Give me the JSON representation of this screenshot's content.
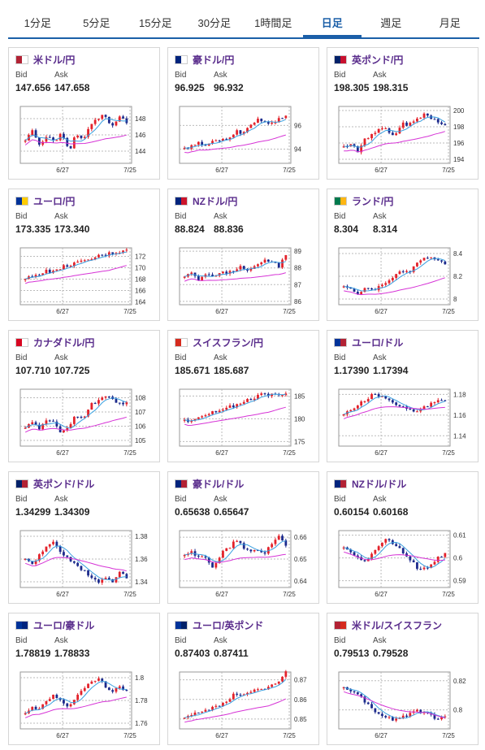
{
  "tabs": [
    {
      "label": "1分足",
      "active": false
    },
    {
      "label": "5分足",
      "active": false
    },
    {
      "label": "15分足",
      "active": false
    },
    {
      "label": "30分足",
      "active": false
    },
    {
      "label": "1時間足",
      "active": false
    },
    {
      "label": "日足",
      "active": true
    },
    {
      "label": "週足",
      "active": false
    },
    {
      "label": "月足",
      "active": false
    }
  ],
  "labels": {
    "bid": "Bid",
    "ask": "Ask"
  },
  "colors": {
    "accent": "#1b5fa8",
    "up": "#e3222b",
    "down": "#1c2a8c",
    "ma_short": "#3aa0e0",
    "ma_long": "#d633d6",
    "pair_name": "#5a2d8c"
  },
  "cards": [
    {
      "name": "米ドル/円",
      "flag": [
        "#b22234",
        "#ffffff"
      ],
      "bid": "147.656",
      "ask": "147.658",
      "chart_data": {
        "type": "candlestick",
        "x_ticks": [
          "6/27",
          "7/25"
        ],
        "y_ticks": [
          "148",
          "146",
          "144"
        ],
        "ylim": [
          142.5,
          149.5
        ],
        "trend": [
          145.5,
          146.5,
          144.5,
          146,
          145,
          146.5,
          144,
          146,
          145.5,
          147,
          148,
          148.5,
          147,
          148.2,
          147.6
        ]
      }
    },
    {
      "name": "豪ドル/円",
      "flag": [
        "#00247d",
        "#ffffff"
      ],
      "bid": "96.925",
      "ask": "96.932",
      "chart_data": {
        "type": "candlestick",
        "x_ticks": [
          "6/27",
          "7/25"
        ],
        "y_ticks": [
          "96",
          "94"
        ],
        "ylim": [
          92.8,
          97.6
        ],
        "trend": [
          94,
          94.2,
          94.5,
          94.4,
          94.6,
          94.8,
          94.7,
          95.5,
          95.3,
          96,
          96.5,
          96.3,
          96.1,
          96.6,
          96.9
        ]
      }
    },
    {
      "name": "英ポンド/円",
      "flag": [
        "#012169",
        "#c8102e"
      ],
      "bid": "198.305",
      "ask": "198.315",
      "chart_data": {
        "type": "candlestick",
        "x_ticks": [
          "6/27",
          "7/25"
        ],
        "y_ticks": [
          "200",
          "198",
          "196",
          "194"
        ],
        "ylim": [
          193.5,
          200.5
        ],
        "trend": [
          195.5,
          196,
          195,
          196.5,
          197,
          198,
          197.5,
          196.8,
          198.5,
          198.2,
          199,
          199.5,
          199.2,
          198.6,
          198.3
        ]
      }
    },
    {
      "name": "ユーロ/円",
      "flag": [
        "#003399",
        "#ffcc00"
      ],
      "bid": "173.335",
      "ask": "173.340",
      "chart_data": {
        "type": "candlestick",
        "x_ticks": [
          "6/27",
          "7/25"
        ],
        "y_ticks": [
          "172",
          "170",
          "168",
          "166",
          "164"
        ],
        "ylim": [
          163.5,
          173.5
        ],
        "trend": [
          168,
          168.5,
          169,
          169.5,
          169.2,
          170,
          170.5,
          170.8,
          171,
          171.5,
          172,
          172.3,
          172.6,
          172.8,
          173.3
        ]
      }
    },
    {
      "name": "NZドル/円",
      "flag": [
        "#00247d",
        "#cc142b"
      ],
      "bid": "88.824",
      "ask": "88.836",
      "chart_data": {
        "type": "candlestick",
        "x_ticks": [
          "6/27",
          "7/25"
        ],
        "y_ticks": [
          "89",
          "88",
          "87",
          "86"
        ],
        "ylim": [
          85.8,
          89.2
        ],
        "trend": [
          87.5,
          87.7,
          87.3,
          87.6,
          87.4,
          87.8,
          87.7,
          87.9,
          88.1,
          87.8,
          88.2,
          88.5,
          88.4,
          88.1,
          88.8
        ]
      }
    },
    {
      "name": "ランド/円",
      "flag": [
        "#007a4d",
        "#ffb612"
      ],
      "bid": "8.304",
      "ask": "8.314",
      "chart_data": {
        "type": "candlestick",
        "x_ticks": [
          "6/27",
          "7/25"
        ],
        "y_ticks": [
          "8.4",
          "8.2",
          "8"
        ],
        "ylim": [
          7.95,
          8.45
        ],
        "trend": [
          8.12,
          8.08,
          8.05,
          8.1,
          8.07,
          8.13,
          8.15,
          8.2,
          8.25,
          8.23,
          8.3,
          8.35,
          8.37,
          8.33,
          8.31
        ]
      }
    },
    {
      "name": "カナダドル/円",
      "flag": [
        "#d80621",
        "#ffffff"
      ],
      "bid": "107.710",
      "ask": "107.725",
      "chart_data": {
        "type": "candlestick",
        "x_ticks": [
          "6/27",
          "7/25"
        ],
        "y_ticks": [
          "108",
          "107",
          "106",
          "105"
        ],
        "ylim": [
          104.6,
          108.6
        ],
        "trend": [
          106,
          106.4,
          105.8,
          106.5,
          106.2,
          105.5,
          106,
          106.8,
          106.5,
          107.5,
          107.8,
          108.2,
          107.9,
          107.6,
          107.7
        ]
      }
    },
    {
      "name": "スイスフラン/円",
      "flag": [
        "#d52b1e",
        "#ffffff"
      ],
      "bid": "185.671",
      "ask": "185.687",
      "chart_data": {
        "type": "candlestick",
        "x_ticks": [
          "6/27",
          "7/25"
        ],
        "y_ticks": [
          "185",
          "180",
          "175"
        ],
        "ylim": [
          174,
          186.5
        ],
        "trend": [
          179.5,
          179.8,
          180.5,
          181,
          181.5,
          182,
          182.5,
          183,
          183.5,
          184.2,
          184.8,
          185.5,
          185.3,
          185.2,
          185.6
        ]
      }
    },
    {
      "name": "ユーロ/ドル",
      "flag": [
        "#003399",
        "#b22234"
      ],
      "bid": "1.17390",
      "ask": "1.17394",
      "chart_data": {
        "type": "candlestick",
        "x_ticks": [
          "6/27",
          "7/25"
        ],
        "y_ticks": [
          "1.18",
          "1.16",
          "1.14"
        ],
        "ylim": [
          1.13,
          1.185
        ],
        "trend": [
          1.16,
          1.165,
          1.17,
          1.175,
          1.18,
          1.178,
          1.175,
          1.172,
          1.168,
          1.165,
          1.163,
          1.167,
          1.17,
          1.175,
          1.174
        ]
      }
    },
    {
      "name": "英ポンド/ドル",
      "flag": [
        "#012169",
        "#b22234"
      ],
      "bid": "1.34299",
      "ask": "1.34309",
      "chart_data": {
        "type": "candlestick",
        "x_ticks": [
          "6/27",
          "7/25"
        ],
        "y_ticks": [
          "1.38",
          "1.36",
          "1.34"
        ],
        "ylim": [
          1.335,
          1.385
        ],
        "trend": [
          1.36,
          1.355,
          1.365,
          1.37,
          1.375,
          1.365,
          1.36,
          1.355,
          1.35,
          1.345,
          1.34,
          1.345,
          1.34,
          1.35,
          1.343
        ]
      }
    },
    {
      "name": "豪ドル/ドル",
      "flag": [
        "#00247d",
        "#b22234"
      ],
      "bid": "0.65638",
      "ask": "0.65647",
      "chart_data": {
        "type": "candlestick",
        "x_ticks": [
          "6/27",
          "7/25"
        ],
        "y_ticks": [
          "0.66",
          "0.65",
          "0.64"
        ],
        "ylim": [
          0.637,
          0.663
        ],
        "trend": [
          0.652,
          0.653,
          0.651,
          0.65,
          0.645,
          0.652,
          0.655,
          0.658,
          0.656,
          0.653,
          0.654,
          0.652,
          0.657,
          0.66,
          0.656
        ]
      }
    },
    {
      "name": "NZドル/ドル",
      "flag": [
        "#00247d",
        "#b22234"
      ],
      "bid": "0.60154",
      "ask": "0.60168",
      "chart_data": {
        "type": "candlestick",
        "x_ticks": [
          "6/27",
          "7/25"
        ],
        "y_ticks": [
          "0.61",
          "0.6",
          "0.59"
        ],
        "ylim": [
          0.587,
          0.612
        ],
        "trend": [
          0.605,
          0.603,
          0.6,
          0.598,
          0.602,
          0.606,
          0.608,
          0.606,
          0.603,
          0.6,
          0.596,
          0.595,
          0.597,
          0.6,
          0.602
        ]
      }
    },
    {
      "name": "ユーロ/豪ドル",
      "flag": [
        "#003399",
        "#00247d"
      ],
      "bid": "1.78819",
      "ask": "1.78833",
      "chart_data": {
        "type": "candlestick",
        "x_ticks": [
          "6/27",
          "7/25"
        ],
        "y_ticks": [
          "1.8",
          "1.78",
          "1.76"
        ],
        "ylim": [
          1.755,
          1.805
        ],
        "trend": [
          1.77,
          1.775,
          1.772,
          1.78,
          1.785,
          1.78,
          1.775,
          1.782,
          1.79,
          1.795,
          1.8,
          1.793,
          1.787,
          1.792,
          1.788
        ]
      }
    },
    {
      "name": "ユーロ/英ポンド",
      "flag": [
        "#003399",
        "#012169"
      ],
      "bid": "0.87403",
      "ask": "0.87411",
      "chart_data": {
        "type": "candlestick",
        "x_ticks": [
          "6/27",
          "7/25"
        ],
        "y_ticks": [
          "0.87",
          "0.86",
          "0.85"
        ],
        "ylim": [
          0.845,
          0.874
        ],
        "trend": [
          0.85,
          0.852,
          0.853,
          0.855,
          0.856,
          0.857,
          0.86,
          0.863,
          0.862,
          0.864,
          0.866,
          0.865,
          0.867,
          0.869,
          0.874
        ]
      }
    },
    {
      "name": "米ドル/スイスフラン",
      "flag": [
        "#b22234",
        "#d52b1e"
      ],
      "bid": "0.79513",
      "ask": "0.79528",
      "chart_data": {
        "type": "candlestick",
        "x_ticks": [
          "6/27",
          "7/25"
        ],
        "y_ticks": [
          "0.82",
          "0.8"
        ],
        "ylim": [
          0.787,
          0.826
        ],
        "trend": [
          0.815,
          0.812,
          0.81,
          0.805,
          0.8,
          0.797,
          0.795,
          0.793,
          0.795,
          0.797,
          0.8,
          0.798,
          0.796,
          0.794,
          0.795
        ]
      }
    }
  ]
}
